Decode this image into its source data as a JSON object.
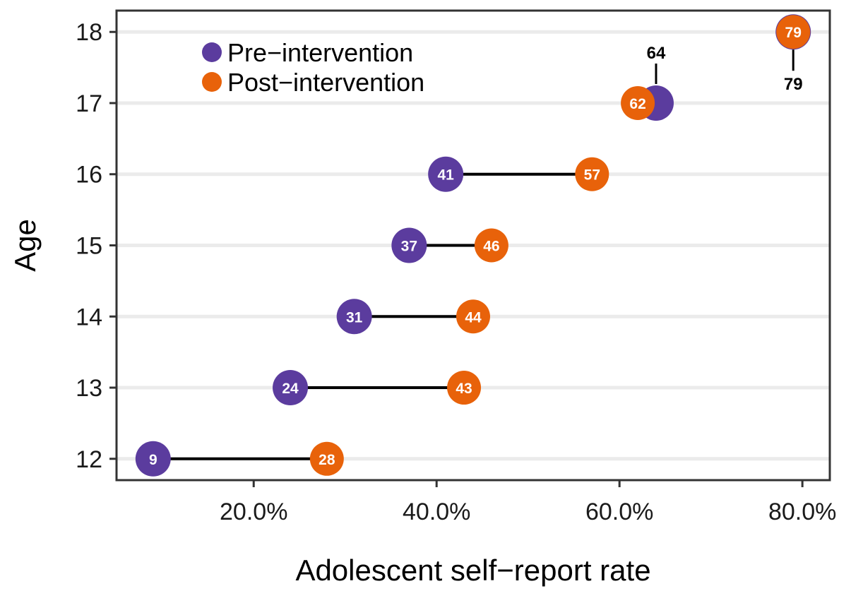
{
  "chart_data": {
    "type": "dumbbell",
    "xlabel": "Adolescent self−report rate",
    "ylabel": "Age",
    "xlim": [
      5,
      83
    ],
    "ylim": [
      11.7,
      18.3
    ],
    "x_ticks": [
      {
        "value": 20,
        "label": "20.0%"
      },
      {
        "value": 40,
        "label": "40.0%"
      },
      {
        "value": 60,
        "label": "60.0%"
      },
      {
        "value": 80,
        "label": "80.0%"
      }
    ],
    "y_ticks": [
      {
        "value": 12,
        "label": "12"
      },
      {
        "value": 13,
        "label": "13"
      },
      {
        "value": 14,
        "label": "14"
      },
      {
        "value": 15,
        "label": "15"
      },
      {
        "value": 16,
        "label": "16"
      },
      {
        "value": 17,
        "label": "17"
      },
      {
        "value": 18,
        "label": "18"
      }
    ],
    "grid": "horizontal",
    "legend_position": "top-left",
    "series": [
      {
        "name": "Pre−intervention",
        "color": "#5b3c9e",
        "points": [
          {
            "age": 12,
            "value": 9,
            "label": "9"
          },
          {
            "age": 13,
            "value": 24,
            "label": "24"
          },
          {
            "age": 14,
            "value": 31,
            "label": "31"
          },
          {
            "age": 15,
            "value": 37,
            "label": "37"
          },
          {
            "age": 16,
            "value": 41,
            "label": "41"
          },
          {
            "age": 17,
            "value": 64,
            "label": "64"
          },
          {
            "age": 18,
            "value": 79,
            "label": "79"
          }
        ]
      },
      {
        "name": "Post−intervention",
        "color": "#e8620a",
        "points": [
          {
            "age": 12,
            "value": 28,
            "label": "28"
          },
          {
            "age": 13,
            "value": 43,
            "label": "43"
          },
          {
            "age": 14,
            "value": 44,
            "label": "44"
          },
          {
            "age": 15,
            "value": 46,
            "label": "46"
          },
          {
            "age": 16,
            "value": 57,
            "label": "57"
          },
          {
            "age": 17,
            "value": 62,
            "label": "62"
          },
          {
            "age": 18,
            "value": 79,
            "label": "79"
          }
        ]
      }
    ]
  }
}
